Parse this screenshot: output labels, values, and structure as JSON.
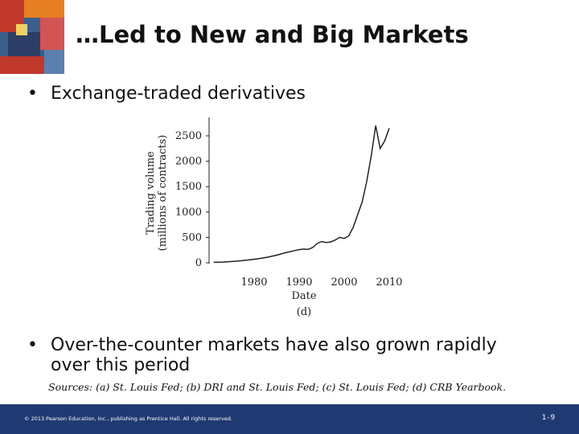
{
  "slide": {
    "title": "…Led to New and Big Markets",
    "bullets": [
      "Exchange-traded derivatives",
      "Over-the-counter markets have also grown rapidly over this period"
    ],
    "bullet_symbol": "•",
    "sources": "Sources: (a) St. Louis Fed; (b) DRI and St. Louis Fed; (c) St. Louis Fed; (d) CRB Yearbook.",
    "footer": {
      "copyright": "© 2013 Pearson Education, Inc., publishing as Prentice Hall. All rights reserved.",
      "page": "1-9"
    }
  },
  "colors": {
    "footer_bg": "#1f3a73",
    "line": "#222222"
  },
  "chart_data": {
    "type": "line",
    "title": "",
    "xlabel": "Date",
    "ylabel_lines": [
      "Trading volume",
      "(millions of contracts)"
    ],
    "panel_label": "(d)",
    "xlim": [
      1970,
      2010
    ],
    "ylim": [
      0,
      2700
    ],
    "xticks": [
      1980,
      1990,
      2000,
      2010
    ],
    "yticks": [
      0,
      500,
      1000,
      1500,
      2000,
      2500
    ],
    "grid": false,
    "series": [
      {
        "x": [
          1971,
          1973,
          1975,
          1977,
          1979,
          1981,
          1983,
          1985,
          1987,
          1988,
          1989,
          1990,
          1991,
          1992,
          1993,
          1994,
          1995,
          1996,
          1997,
          1998,
          1999,
          2000,
          2001,
          2002,
          2003,
          2004,
          2005,
          2006,
          2007,
          2008,
          2009,
          2010
        ],
        "y": [
          10,
          15,
          25,
          40,
          60,
          80,
          110,
          150,
          200,
          220,
          240,
          260,
          270,
          265,
          300,
          380,
          420,
          400,
          410,
          450,
          500,
          480,
          530,
          700,
          950,
          1200,
          1600,
          2100,
          2700,
          2250,
          2400,
          2650
        ]
      }
    ]
  }
}
